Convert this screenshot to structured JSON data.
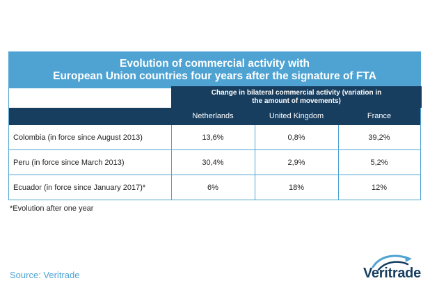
{
  "chart_data": {
    "type": "table",
    "title": "Evolution of commercial activity with European Union countries four years after the signature of FTA",
    "title_line1": "Evolution of commercial activity with",
    "title_line2": "European Union countries four years after the signature of FTA",
    "group_header": "Change in bilateral commercial activity (variation in the amount of movements)",
    "group_header_line1": "Change in bilateral commercial activity (variation in",
    "group_header_line2": "the amount of movements)",
    "columns": [
      "Netherlands",
      "United Kingdom",
      "France"
    ],
    "rows": [
      {
        "label": "Colombia (in force since August 2013)",
        "values": [
          "13,6%",
          "0,8%",
          "39,2%"
        ]
      },
      {
        "label": "Peru (in force since March 2013)",
        "values": [
          "30,4%",
          "2,9%",
          "5,2%"
        ]
      },
      {
        "label": "Ecuador (in force since January 2017)*",
        "values": [
          "6%",
          "18%",
          "12%"
        ]
      }
    ],
    "note": "*Evolution after one year",
    "source": "Source: Veritrade"
  },
  "logo": {
    "text": "Veritrade"
  },
  "colors": {
    "accent": "#4ea3d3",
    "header_dark": "#173e5f",
    "text": "#222222"
  }
}
